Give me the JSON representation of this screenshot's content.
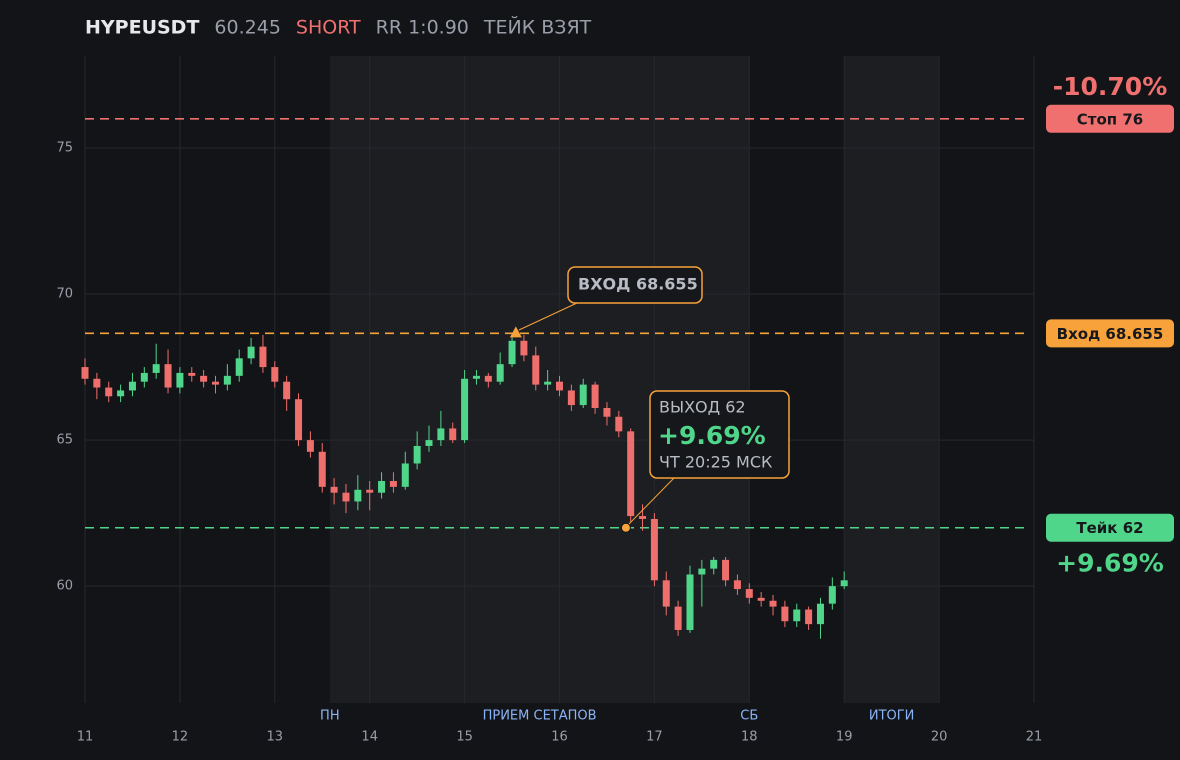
{
  "header": [
    {
      "text": "HYPEUSDT",
      "color": "#e6e8ec"
    },
    {
      "text": "60.245",
      "color": "#9a9ea8"
    },
    {
      "text": "SHORT",
      "color": "#f07070"
    },
    {
      "text": "RR 1:0.90",
      "color": "#9a9ea8"
    },
    {
      "text": "ТЕЙК ВЗЯТ",
      "color": "#9a9ea8"
    }
  ],
  "chart_data": {
    "type": "candlestick",
    "xlim": [
      11,
      21
    ],
    "ylim": [
      56,
      78.15
    ],
    "xticks": [
      11,
      12,
      13,
      14,
      15,
      16,
      17,
      18,
      19,
      20,
      21
    ],
    "yticks": [
      60,
      65,
      70,
      75
    ],
    "grid": true,
    "up_color": "#4fd68a",
    "down_color": "#ef6f6c",
    "shaded_ranges": [
      [
        13.58,
        18
      ],
      [
        19,
        20
      ]
    ],
    "x_labels": [
      {
        "x": 13.58,
        "label": "ПН"
      },
      {
        "x": 15.79,
        "label": "ПРИЕМ СЕТАПОВ"
      },
      {
        "x": 18,
        "label": "СБ"
      },
      {
        "x": 19.5,
        "label": "ИТОГИ"
      }
    ],
    "x": [
      11,
      11.125,
      11.25,
      11.375,
      11.5,
      11.625,
      11.75,
      11.875,
      12,
      12.125,
      12.25,
      12.375,
      12.5,
      12.625,
      12.75,
      12.875,
      13,
      13.125,
      13.25,
      13.375,
      13.5,
      13.625,
      13.75,
      13.875,
      14,
      14.125,
      14.25,
      14.375,
      14.5,
      14.625,
      14.75,
      14.875,
      15,
      15.125,
      15.25,
      15.375,
      15.5,
      15.625,
      15.75,
      15.875,
      16,
      16.125,
      16.25,
      16.375,
      16.5,
      16.625,
      16.75,
      16.875,
      17,
      17.125,
      17.25,
      17.375,
      17.5,
      17.625,
      17.75,
      17.875,
      18,
      18.125,
      18.25,
      18.375,
      18.5,
      18.625,
      18.75,
      18.875,
      19
    ],
    "open": [
      67.5,
      67.1,
      66.8,
      66.5,
      66.7,
      67.0,
      67.3,
      67.6,
      66.8,
      67.3,
      67.2,
      67.0,
      66.9,
      67.2,
      67.8,
      68.2,
      67.5,
      67.0,
      66.4,
      65.0,
      64.6,
      63.4,
      63.2,
      62.9,
      63.3,
      63.2,
      63.6,
      63.4,
      64.2,
      64.8,
      65.0,
      65.4,
      65.0,
      67.1,
      67.2,
      67.0,
      67.6,
      68.4,
      67.9,
      66.9,
      67.0,
      66.7,
      66.2,
      66.9,
      66.1,
      65.8,
      65.3,
      62.4,
      62.3,
      60.2,
      59.3,
      58.5,
      60.4,
      60.6,
      60.9,
      60.2,
      59.9,
      59.6,
      59.5,
      59.3,
      58.8,
      59.2,
      58.7,
      59.4,
      60.0
    ],
    "high": [
      67.8,
      67.3,
      67.0,
      66.9,
      67.3,
      67.5,
      68.3,
      68.1,
      67.5,
      67.5,
      67.4,
      67.2,
      67.6,
      68.1,
      68.5,
      68.6,
      67.7,
      67.2,
      66.6,
      65.3,
      64.9,
      63.7,
      63.5,
      63.8,
      63.6,
      63.9,
      63.9,
      64.6,
      65.3,
      65.5,
      66.0,
      65.6,
      67.4,
      67.4,
      67.3,
      68.0,
      68.655,
      68.6,
      68.2,
      67.4,
      67.2,
      66.9,
      67.1,
      67.0,
      66.3,
      66.0,
      65.4,
      62.8,
      62.5,
      60.5,
      59.5,
      60.7,
      60.9,
      61.0,
      61.0,
      60.4,
      60.1,
      59.8,
      59.7,
      59.5,
      59.4,
      59.3,
      59.6,
      60.3,
      60.5
    ],
    "low": [
      66.9,
      66.4,
      66.3,
      66.3,
      66.5,
      66.8,
      67.1,
      66.6,
      66.6,
      67.0,
      66.8,
      66.6,
      66.7,
      67.0,
      67.6,
      67.3,
      66.8,
      66.0,
      64.8,
      64.4,
      63.2,
      62.8,
      62.5,
      62.6,
      62.6,
      63.0,
      63.2,
      63.3,
      64.0,
      64.6,
      64.8,
      64.9,
      64.9,
      66.9,
      66.8,
      66.9,
      67.5,
      67.7,
      66.7,
      66.7,
      66.5,
      66.0,
      66.1,
      65.9,
      65.5,
      65.1,
      62.2,
      61.9,
      60.0,
      59.0,
      58.3,
      58.4,
      59.3,
      60.4,
      60.0,
      59.7,
      59.4,
      59.3,
      59.0,
      58.6,
      58.6,
      58.5,
      58.2,
      59.2,
      59.9
    ],
    "close": [
      67.1,
      66.8,
      66.5,
      66.7,
      67.0,
      67.3,
      67.6,
      66.8,
      67.3,
      67.2,
      67.0,
      66.9,
      67.2,
      67.8,
      68.2,
      67.5,
      67.0,
      66.4,
      65.0,
      64.6,
      63.4,
      63.2,
      62.9,
      63.3,
      63.2,
      63.6,
      63.4,
      64.2,
      64.8,
      65.0,
      65.4,
      65.0,
      67.1,
      67.2,
      67.0,
      67.6,
      68.4,
      67.9,
      66.9,
      67.0,
      66.7,
      66.2,
      66.9,
      66.1,
      65.8,
      65.3,
      62.4,
      62.3,
      60.2,
      59.3,
      58.5,
      60.4,
      60.6,
      60.9,
      60.2,
      59.9,
      59.6,
      59.5,
      59.3,
      58.8,
      59.2,
      58.7,
      59.4,
      60.0,
      60.2
    ],
    "levels": [
      {
        "name": "Стоп 76",
        "value": 76,
        "color": "#f07070",
        "pct": "-10.70%",
        "pct_position": "above"
      },
      {
        "name": "Вход 68.655",
        "value": 68.655,
        "color": "#f7a23b"
      },
      {
        "name": "Тейк 62",
        "value": 62,
        "color": "#4fd68a",
        "pct": "+9.69%",
        "pct_position": "below"
      }
    ],
    "entry_marker": {
      "x": 15.54,
      "y": 68.655,
      "color": "#f7a23b"
    },
    "exit_marker": {
      "x": 16.7,
      "y": 62,
      "color": "#f7a23b"
    },
    "entry_callout": "ВХОД 68.655",
    "exit_callout": {
      "title": "ВЫХОД 62",
      "result": "+9.69%",
      "time": "ЧТ 20:25 МСК"
    }
  }
}
